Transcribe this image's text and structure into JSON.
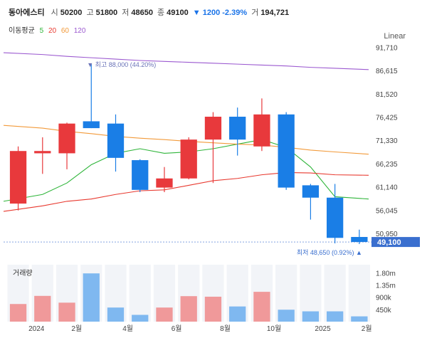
{
  "header": {
    "name": "동아에스티",
    "open_label": "시",
    "open": "50200",
    "high_label": "고",
    "high": "51800",
    "low_label": "저",
    "low": "48650",
    "close_label": "종",
    "close": "49100",
    "change": "▼ 1200 -2.39%",
    "volume_label": "거",
    "volume": "194,721"
  },
  "ma_legend": {
    "label": "이동평균",
    "items": [
      {
        "text": "5",
        "color": "#2fb53a"
      },
      {
        "text": "20",
        "color": "#e8392f"
      },
      {
        "text": "60",
        "color": "#f29a3a"
      },
      {
        "text": "120",
        "color": "#9b59d0"
      }
    ]
  },
  "scale_mode": "Linear",
  "volume_panel_label": "거래량",
  "colors": {
    "up": "#e8393c",
    "down": "#1a7ee6",
    "vol_up": "#f0999a",
    "vol_down": "#7fb8f0",
    "current": "#3a6fcf"
  },
  "chart_data": {
    "type": "candlestick",
    "title": "동아에스티",
    "x_ticks": [
      {
        "index": 0.75,
        "label": "2024"
      },
      {
        "index": 2.4,
        "label": "2월"
      },
      {
        "index": 4.5,
        "label": "4월"
      },
      {
        "index": 6.5,
        "label": "6월"
      },
      {
        "index": 8.5,
        "label": "8월"
      },
      {
        "index": 10.5,
        "label": "10월"
      },
      {
        "index": 12.5,
        "label": "2025"
      },
      {
        "index": 14.3,
        "label": "2월"
      }
    ],
    "ylim": [
      46000,
      93000
    ],
    "y_ticks": [
      {
        "value": 91710,
        "label": "91,710"
      },
      {
        "value": 86615,
        "label": "86,615"
      },
      {
        "value": 81520,
        "label": "81,520"
      },
      {
        "value": 76425,
        "label": "76,425"
      },
      {
        "value": 71330,
        "label": "71,330"
      },
      {
        "value": 66235,
        "label": "66,235"
      },
      {
        "value": 61140,
        "label": "61,140"
      },
      {
        "value": 56045,
        "label": "56,045"
      },
      {
        "value": 50950,
        "label": "50,950"
      }
    ],
    "candles": [
      {
        "open": 57500,
        "high": 70000,
        "low": 56000,
        "close": 69000,
        "volume": 650000
      },
      {
        "open": 68500,
        "high": 72000,
        "low": 64000,
        "close": 69000,
        "volume": 950000
      },
      {
        "open": 68500,
        "high": 75200,
        "low": 65000,
        "close": 75000,
        "volume": 700000
      },
      {
        "open": 75500,
        "high": 88000,
        "low": 74000,
        "close": 74000,
        "volume": 1780000
      },
      {
        "open": 75000,
        "high": 77000,
        "low": 64500,
        "close": 67500,
        "volume": 520000
      },
      {
        "open": 67000,
        "high": 67200,
        "low": 60000,
        "close": 60500,
        "volume": 250000
      },
      {
        "open": 61000,
        "high": 65500,
        "low": 60000,
        "close": 63000,
        "volume": 520000
      },
      {
        "open": 63000,
        "high": 72000,
        "low": 62800,
        "close": 71500,
        "volume": 940000
      },
      {
        "open": 71500,
        "high": 77500,
        "low": 62000,
        "close": 76500,
        "volume": 920000
      },
      {
        "open": 76500,
        "high": 78500,
        "low": 68000,
        "close": 71500,
        "volume": 560000
      },
      {
        "open": 70000,
        "high": 80500,
        "low": 69000,
        "close": 77000,
        "volume": 1100000
      },
      {
        "open": 77000,
        "high": 77500,
        "low": 60500,
        "close": 61000,
        "volume": 440000
      },
      {
        "open": 61500,
        "high": 61800,
        "low": 54000,
        "close": 58800,
        "volume": 380000
      },
      {
        "open": 58800,
        "high": 61800,
        "low": 48800,
        "close": 50000,
        "volume": 380000
      },
      {
        "open": 50200,
        "high": 51800,
        "low": 48650,
        "close": 49100,
        "volume": 194721
      }
    ],
    "ma": [
      {
        "period": 5,
        "points": [
          58000,
          59500,
          62000,
          66000,
          68500,
          69500,
          68500,
          68800,
          69500,
          70500,
          71500,
          69800,
          65500,
          59000,
          58500
        ]
      },
      {
        "period": 20,
        "points": [
          55800,
          57000,
          58000,
          58500,
          59500,
          60300,
          60500,
          61500,
          62500,
          63000,
          63800,
          64300,
          64200,
          63800,
          63700
        ]
      },
      {
        "period": 60,
        "points": [
          74600,
          74000,
          73300,
          72800,
          72200,
          71800,
          71500,
          71100,
          70800,
          70500,
          70300,
          69800,
          69200,
          68800,
          68300
        ]
      },
      {
        "period": 120,
        "points": [
          90500,
          90100,
          89700,
          89400,
          89100,
          88800,
          88600,
          88400,
          88200,
          88000,
          87800,
          87600,
          87300,
          87100,
          86800
        ]
      }
    ],
    "annotations": {
      "high": {
        "index": 3,
        "value": 88000,
        "text": "▼ 최고 88,000 (44.20%)"
      },
      "low": {
        "index": 14,
        "value": 48650,
        "text": "최저 48,650 (0.92%) ▲"
      }
    },
    "current_price": {
      "value": 49100,
      "label": "49,100"
    },
    "volume_axis": {
      "max": 2100000,
      "ticks": [
        {
          "value": 1800000,
          "label": "1.80m"
        },
        {
          "value": 1350000,
          "label": "1.35m"
        },
        {
          "value": 900000,
          "label": "900k"
        },
        {
          "value": 450000,
          "label": "450k"
        }
      ]
    }
  }
}
